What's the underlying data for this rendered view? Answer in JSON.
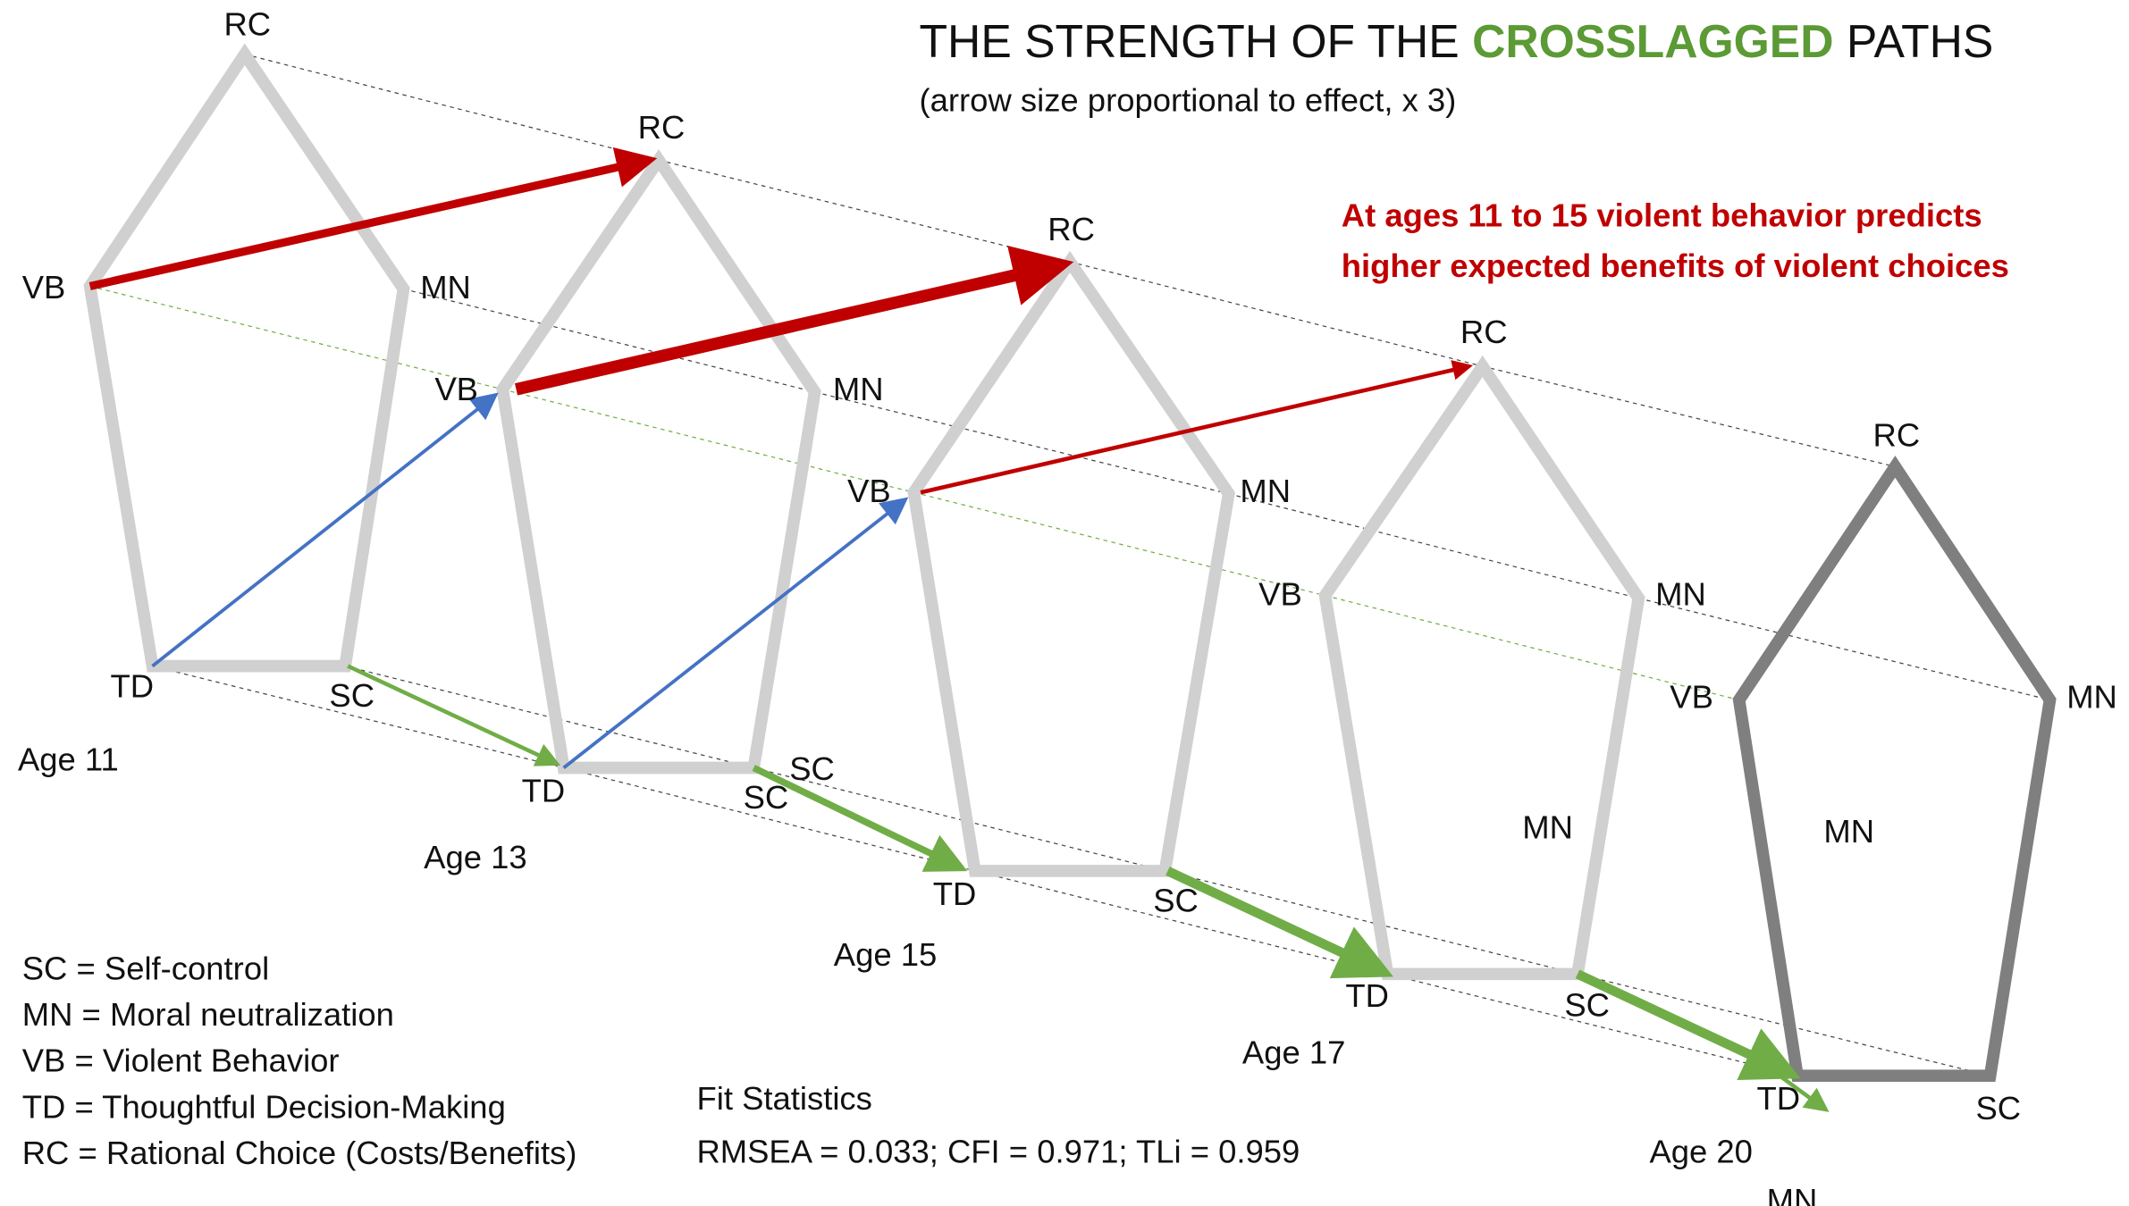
{
  "title": {
    "before": "THE STRENGTH OF THE ",
    "highlight": "CROSSLAGGED",
    "after": " PATHS"
  },
  "subtitle": "(arrow size proportional to effect, x 3)",
  "annotation": [
    "At ages 11 to 15 violent behavior predicts",
    "higher expected benefits of violent choices"
  ],
  "waves": [
    {
      "age": "Age 11",
      "nodes": {
        "RC": "RC",
        "MN": "MN",
        "SC": "SC",
        "TD": "TD",
        "VB": "VB"
      }
    },
    {
      "age": "Age 13",
      "nodes": {
        "RC": "RC",
        "MN": "MN",
        "SC": "SC",
        "TD": "TD",
        "VB": "VB"
      }
    },
    {
      "age": "Age 15",
      "nodes": {
        "RC": "RC",
        "MN": "MN",
        "SC": "SC",
        "TD": "TD",
        "VB": "VB"
      }
    },
    {
      "age": "Age 17",
      "nodes": {
        "RC": "RC",
        "MN": "MN",
        "SC": "SC",
        "TD": "TD",
        "VB": "VB"
      }
    },
    {
      "age": "Age 20",
      "nodes": {
        "RC": "RC",
        "MN": "MN",
        "SC": "SC",
        "TD": "TD",
        "VB": "VB"
      }
    }
  ],
  "extra_labels": [
    "SC",
    "MN",
    "MN",
    "MN"
  ],
  "legend": [
    "SC = Self-control",
    "MN = Moral neutralization",
    "VB = Violent Behavior",
    "TD = Thoughtful Decision-Making",
    "RC = Rational Choice (Costs/Benefits)"
  ],
  "fit": {
    "title": "Fit Statistics",
    "values": "RMSEA = 0.033; CFI = 0.971; TLi = 0.959"
  }
}
